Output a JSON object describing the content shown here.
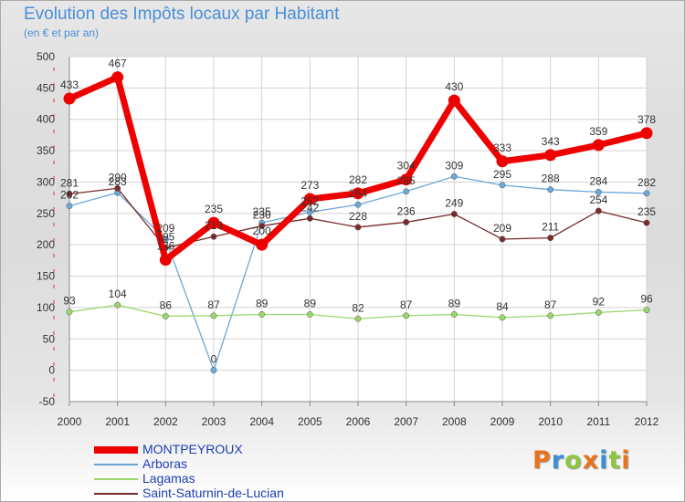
{
  "header": {
    "title": "Evolution des Impôts locaux par Habitant",
    "subtitle": "(en € et par an)"
  },
  "logo": {
    "text": "Proxiti",
    "letters": [
      {
        "ch": "P",
        "color": "#e8731c"
      },
      {
        "ch": "r",
        "color": "#3a8fd6"
      },
      {
        "ch": "o",
        "color": "#8cc63f"
      },
      {
        "ch": "x",
        "color": "#e8731c"
      },
      {
        "ch": "i",
        "color": "#3a8fd6"
      },
      {
        "ch": "t",
        "color": "#8cc63f"
      },
      {
        "ch": "i",
        "color": "#e8731c"
      }
    ]
  },
  "chart_data": {
    "type": "line",
    "title": "Evolution des Impôts locaux par Habitant",
    "subtitle": "(en € et par an)",
    "xlabel": "",
    "ylabel": "",
    "x": [
      "2000",
      "2001",
      "2002",
      "2003",
      "2004",
      "2005",
      "2006",
      "2007",
      "2008",
      "2009",
      "2010",
      "2011",
      "2012"
    ],
    "ylim": [
      -50,
      500
    ],
    "yticks": [
      -50,
      0,
      50,
      100,
      150,
      200,
      250,
      300,
      350,
      400,
      450,
      500
    ],
    "grid": true,
    "legend_position": "bottom-left",
    "series": [
      {
        "name": "MONTPEYROUX",
        "color": "#ee0000",
        "emphasis": true,
        "values": [
          433,
          467,
          176,
          235,
          200,
          273,
          282,
          304,
          430,
          333,
          343,
          359,
          378
        ],
        "labels": [
          "433",
          "467",
          "176",
          "235",
          "200",
          "273",
          "282",
          "304",
          "430",
          "333",
          "343",
          "359",
          "378"
        ]
      },
      {
        "name": "Arboras",
        "color": "#6da8d8",
        "emphasis": false,
        "values": [
          262,
          283,
          209,
          0,
          235,
          252,
          264,
          285,
          309,
          295,
          288,
          284,
          282
        ],
        "labels": [
          "262",
          "283",
          "209",
          "0",
          "235",
          "252",
          "264",
          "285",
          "309",
          "295",
          "288",
          "284",
          "282"
        ]
      },
      {
        "name": "Lagamas",
        "color": "#9ad66c",
        "emphasis": false,
        "values": [
          93,
          104,
          86,
          87,
          89,
          89,
          82,
          87,
          89,
          84,
          87,
          92,
          96
        ],
        "labels": [
          "93",
          "104",
          "86",
          "87",
          "89",
          "89",
          "82",
          "87",
          "89",
          "84",
          "87",
          "92",
          "96"
        ]
      },
      {
        "name": "Saint-Saturnin-de-Lucian",
        "color": "#7a2a2a",
        "emphasis": false,
        "values": [
          281,
          290,
          195,
          213,
          230,
          242,
          228,
          236,
          249,
          209,
          211,
          254,
          235
        ],
        "labels": [
          "281",
          "290",
          "195",
          "213",
          "230",
          "242",
          "228",
          "236",
          "249",
          "209",
          "211",
          "254",
          "235"
        ]
      }
    ]
  }
}
